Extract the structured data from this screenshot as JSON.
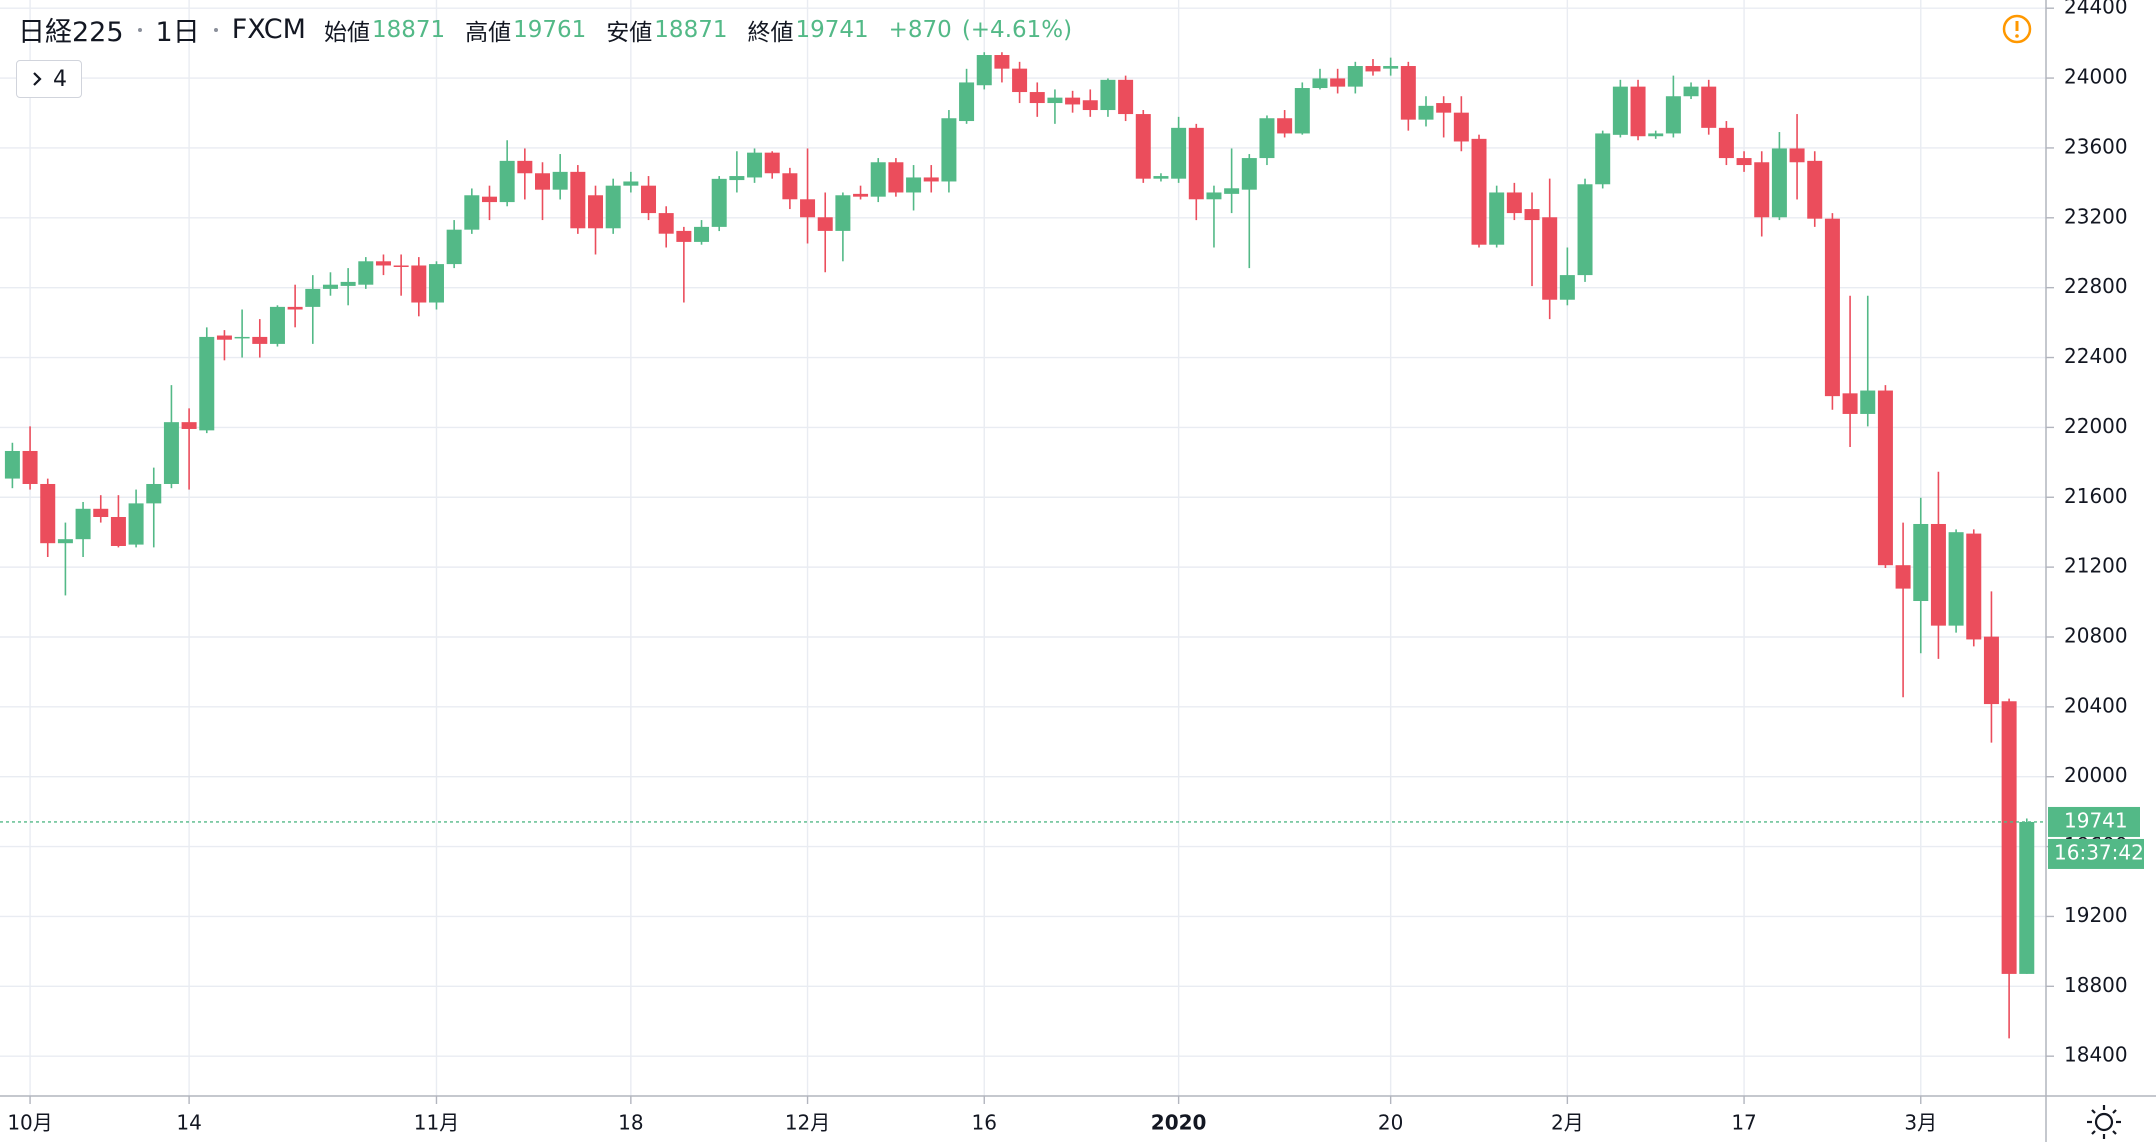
{
  "chart_data": {
    "type": "candlestick",
    "symbol": "日経225",
    "interval": "1日",
    "source": "FXCM",
    "legend_labels": {
      "open": "始値",
      "high": "高値",
      "low": "安値",
      "close": "終値"
    },
    "change": "+870",
    "change_pct": "(+4.61%)",
    "indicators": 4,
    "countdown": "16:37:42",
    "up_color": "#53b987",
    "down_color": "#eb4d5c",
    "grid": true,
    "ylim": [
      18172,
      24447
    ],
    "yticks": [
      18400,
      18800,
      19200,
      19600,
      20000,
      20400,
      20800,
      21200,
      21600,
      22000,
      22400,
      22800,
      23200,
      23600,
      24000,
      24400
    ],
    "categories": [
      null,
      "10月",
      null,
      null,
      null,
      null,
      null,
      null,
      null,
      null,
      "14",
      null,
      null,
      null,
      null,
      null,
      null,
      null,
      null,
      null,
      null,
      null,
      null,
      null,
      "11月",
      null,
      null,
      null,
      null,
      null,
      null,
      null,
      null,
      null,
      null,
      "18",
      null,
      null,
      null,
      null,
      null,
      null,
      null,
      null,
      null,
      "12月",
      null,
      null,
      null,
      null,
      null,
      null,
      null,
      null,
      null,
      "16",
      null,
      null,
      null,
      null,
      null,
      null,
      null,
      null,
      null,
      null,
      "2020",
      null,
      null,
      null,
      null,
      null,
      null,
      null,
      null,
      null,
      null,
      null,
      "20",
      null,
      null,
      null,
      null,
      null,
      null,
      null,
      null,
      null,
      "2月",
      null,
      null,
      null,
      null,
      null,
      null,
      null,
      null,
      null,
      "17",
      null,
      null,
      null,
      null,
      null,
      null,
      null,
      null,
      null,
      "3月",
      null,
      null,
      null,
      null,
      null,
      null
    ],
    "open": [
      21707,
      21865,
      21676,
      21337,
      21360,
      21534,
      21487,
      21329,
      21565,
      21676,
      22030,
      21983,
      22526,
      22510,
      22518,
      22478,
      22690,
      22690,
      22793,
      22810,
      22817,
      22951,
      22927,
      22927,
      22715,
      22935,
      23132,
      23321,
      23290,
      23526,
      23455,
      23361,
      23463,
      23329,
      23140,
      23384,
      23384,
      23227,
      23125,
      23062,
      23148,
      23416,
      23431,
      23573,
      23455,
      23306,
      23203,
      23125,
      23337,
      23321,
      23518,
      23345,
      23431,
      23408,
      23754,
      23959,
      24132,
      24054,
      23920,
      23857,
      23888,
      23873,
      23817,
      23990,
      23794,
      23424,
      23424,
      23715,
      23306,
      23337,
      23361,
      23542,
      23770,
      23683,
      23943,
      23998,
      23951,
      24069,
      24054,
      24069,
      23762,
      23857,
      23802,
      23652,
      23046,
      23345,
      23250,
      23203,
      22731,
      22872,
      23392,
      23675,
      23951,
      23667,
      23683,
      23896,
      23951,
      23715,
      23542,
      23518,
      23203,
      23597,
      23526,
      23195,
      22195,
      22077,
      22211,
      21211,
      21006,
      21447,
      20865,
      21392,
      20802,
      20432,
      18871
    ],
    "high": [
      21912,
      22006,
      21707,
      21455,
      21573,
      21612,
      21612,
      21644,
      21770,
      22242,
      22109,
      22573,
      22557,
      22675,
      22620,
      22699,
      22817,
      22872,
      22888,
      22912,
      22975,
      22990,
      22990,
      22975,
      22951,
      23187,
      23368,
      23384,
      23644,
      23597,
      23518,
      23565,
      23502,
      23384,
      23424,
      23463,
      23439,
      23266,
      23148,
      23187,
      23439,
      23581,
      23597,
      23581,
      23486,
      23597,
      23345,
      23345,
      23384,
      23542,
      23542,
      23502,
      23502,
      23817,
      24053,
      24148,
      24148,
      24093,
      23975,
      23935,
      23927,
      23935,
      23998,
      24014,
      23817,
      23455,
      23778,
      23738,
      23384,
      23597,
      23565,
      23786,
      23817,
      23975,
      24053,
      24053,
      24093,
      24109,
      24117,
      24093,
      23896,
      23896,
      23896,
      23676,
      23384,
      23400,
      23345,
      23424,
      23030,
      23424,
      23699,
      23990,
      23990,
      23699,
      24014,
      23975,
      23990,
      23754,
      23581,
      23581,
      23691,
      23794,
      23581,
      23227,
      22754,
      22754,
      22242,
      21455,
      21597,
      21746,
      21416,
      21416,
      21061,
      20447,
      19761
    ],
    "low": [
      21652,
      21644,
      21258,
      21038,
      21258,
      21455,
      21313,
      21313,
      21313,
      21652,
      21644,
      21967,
      22384,
      22400,
      22400,
      22463,
      22573,
      22478,
      22754,
      22699,
      22793,
      22872,
      22754,
      22636,
      22675,
      22912,
      23108,
      23187,
      23266,
      23305,
      23187,
      23305,
      23108,
      22990,
      23108,
      23345,
      23187,
      23030,
      22715,
      23046,
      23124,
      23345,
      23400,
      23424,
      23250,
      23053,
      22888,
      22951,
      23305,
      23290,
      23321,
      23242,
      23345,
      23345,
      23738,
      23935,
      23975,
      23857,
      23778,
      23738,
      23802,
      23778,
      23778,
      23754,
      23400,
      23408,
      23400,
      23187,
      23030,
      23227,
      22912,
      23502,
      23660,
      23676,
      23935,
      23912,
      23912,
      24014,
      24014,
      23699,
      23723,
      23660,
      23581,
      23030,
      23030,
      23187,
      22809,
      22620,
      22699,
      22833,
      23368,
      23660,
      23644,
      23652,
      23660,
      23880,
      23676,
      23502,
      23463,
      23093,
      23187,
      23305,
      23148,
      22101,
      21888,
      22006,
      21195,
      20455,
      20707,
      20675,
      20825,
      20746,
      20195,
      18502,
      18871
    ],
    "close": [
      21865,
      21676,
      21337,
      21360,
      21534,
      21487,
      21321,
      21565,
      21676,
      22030,
      21991,
      22518,
      22502,
      22518,
      22478,
      22690,
      22675,
      22793,
      22817,
      22833,
      22951,
      22927,
      22920,
      22715,
      22935,
      23132,
      23329,
      23290,
      23526,
      23455,
      23361,
      23463,
      23140,
      23140,
      23384,
      23408,
      23227,
      23109,
      23062,
      23148,
      23423,
      23439,
      23573,
      23455,
      23306,
      23203,
      23125,
      23329,
      23321,
      23518,
      23345,
      23431,
      23408,
      23770,
      23975,
      24132,
      24054,
      23920,
      23857,
      23888,
      23849,
      23817,
      23990,
      23794,
      23424,
      23439,
      23715,
      23306,
      23345,
      23369,
      23542,
      23770,
      23683,
      23943,
      23998,
      23951,
      24069,
      24038,
      24069,
      23762,
      23841,
      23802,
      23637,
      23046,
      23345,
      23227,
      23187,
      22731,
      22872,
      23392,
      23683,
      23951,
      23667,
      23683,
      23896,
      23951,
      23715,
      23542,
      23502,
      23203,
      23597,
      23518,
      23195,
      22179,
      22077,
      22211,
      21211,
      21077,
      21447,
      20865,
      21400,
      20786,
      20416,
      18871,
      19741
    ]
  }
}
